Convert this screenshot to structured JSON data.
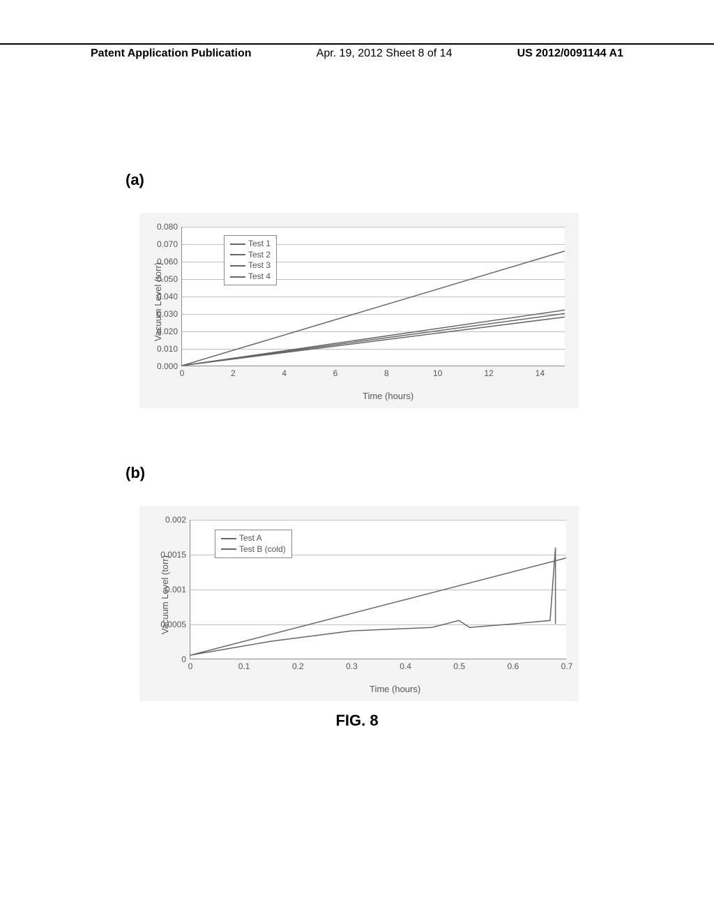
{
  "header": {
    "left": "Patent Application Publication",
    "center": "Apr. 19, 2012  Sheet 8 of 14",
    "right": "US 2012/0091144 A1"
  },
  "panel_a": {
    "label": "(a)",
    "type": "line",
    "ylabel": "Vacuum Level (torr)",
    "xlabel": "Time (hours)",
    "xlim": [
      0,
      15
    ],
    "ylim": [
      0,
      0.08
    ],
    "xticks": [
      0,
      2,
      4,
      6,
      8,
      10,
      12,
      14
    ],
    "yticks": [
      "0.000",
      "0.010",
      "0.020",
      "0.030",
      "0.040",
      "0.050",
      "0.060",
      "0.070",
      "0.080"
    ],
    "grid_color": "#c0c0c0",
    "background": "#f4f4f4",
    "plot_background": "#ffffff",
    "line_color": "#666666",
    "legend": [
      "Test 1",
      "Test 2",
      "Test 3",
      "Test 4"
    ],
    "series": {
      "test1": [
        [
          0,
          0.0
        ],
        [
          15,
          0.066
        ]
      ],
      "test2": [
        [
          0,
          0.0
        ],
        [
          15,
          0.03
        ]
      ],
      "test3": [
        [
          0,
          0.0
        ],
        [
          15,
          0.032
        ]
      ],
      "test4": [
        [
          0,
          0.0
        ],
        [
          15,
          0.028
        ]
      ]
    }
  },
  "panel_b": {
    "label": "(b)",
    "type": "line",
    "ylabel": "Vacuum Level (torr)",
    "xlabel": "Time (hours)",
    "xlim": [
      0,
      0.7
    ],
    "ylim": [
      0,
      0.002
    ],
    "xticks": [
      "0",
      "0.1",
      "0.2",
      "0.3",
      "0.4",
      "0.5",
      "0.6",
      "0.7"
    ],
    "yticks": [
      "0",
      "0.0005",
      "0.001",
      "0.0015",
      "0.002"
    ],
    "grid_color": "#c0c0c0",
    "background": "#f4f4f4",
    "plot_background": "#ffffff",
    "line_color": "#666666",
    "legend": [
      "Test A",
      "Test B (cold)"
    ],
    "series": {
      "testA": [
        [
          0,
          5e-05
        ],
        [
          0.7,
          0.00145
        ]
      ],
      "testB": [
        [
          0,
          5e-05
        ],
        [
          0.15,
          0.00025
        ],
        [
          0.3,
          0.0004
        ],
        [
          0.45,
          0.00045
        ],
        [
          0.5,
          0.00055
        ],
        [
          0.52,
          0.00045
        ],
        [
          0.6,
          0.0005
        ],
        [
          0.67,
          0.00055
        ],
        [
          0.68,
          0.0016
        ],
        [
          0.68,
          0.0005
        ]
      ]
    }
  },
  "caption": "FIG. 8"
}
